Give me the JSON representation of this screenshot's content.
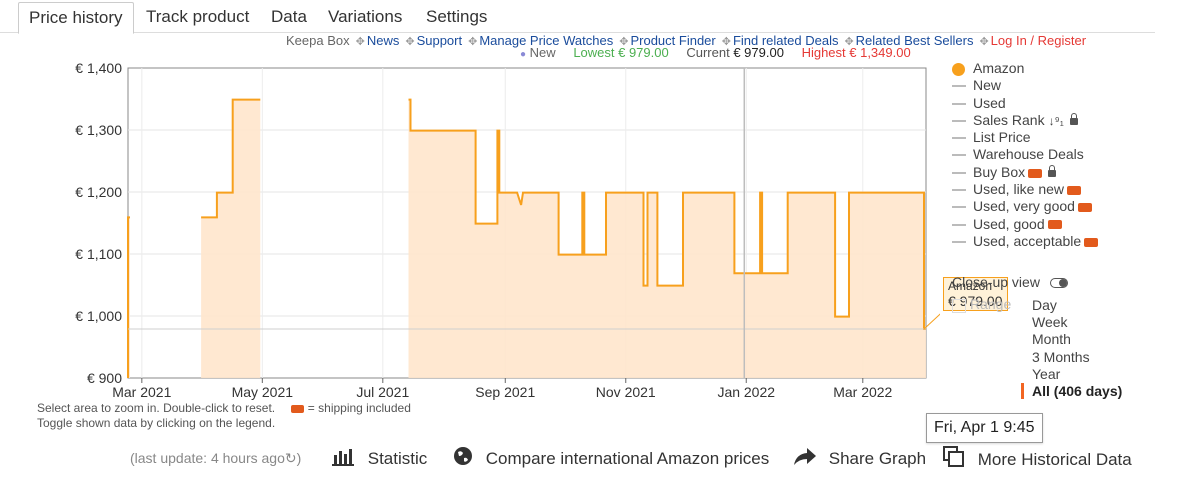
{
  "tabs": [
    "Price history",
    "Track product",
    "Data",
    "Variations",
    "Settings"
  ],
  "links": {
    "keepa_box": "Keepa Box",
    "news": "News",
    "support": "Support",
    "manage": "Manage Price Watches",
    "finder": "Product Finder",
    "deals": "Find related Deals",
    "best": "Related Best Sellers",
    "login": "Log In / Register"
  },
  "stats": {
    "new_label": "New",
    "lowest": "Lowest € 979.00",
    "current_label": "Current",
    "current_value": "€ 979.00",
    "highest": "Highest € 1,349.00"
  },
  "legend": [
    {
      "label": "Amazon",
      "marker": "dot",
      "extra": ""
    },
    {
      "label": "New",
      "marker": "line",
      "extra": ""
    },
    {
      "label": "Used",
      "marker": "line",
      "extra": ""
    },
    {
      "label": "Sales Rank",
      "marker": "line",
      "extra": "sort-lock"
    },
    {
      "label": "List Price",
      "marker": "line",
      "extra": ""
    },
    {
      "label": "Warehouse Deals",
      "marker": "line",
      "extra": ""
    },
    {
      "label": "Buy Box",
      "marker": "line",
      "extra": "truck-lock"
    },
    {
      "label": "Used, like new",
      "marker": "line",
      "extra": "truck"
    },
    {
      "label": "Used, very good",
      "marker": "line",
      "extra": "truck"
    },
    {
      "label": "Used, good",
      "marker": "line",
      "extra": "truck"
    },
    {
      "label": "Used, acceptable",
      "marker": "line",
      "extra": "truck"
    }
  ],
  "closeup_label": "Close-up view",
  "range_label": "Range",
  "range_options": [
    "Day",
    "Week",
    "Month",
    "3 Months",
    "Year",
    "All (406 days)"
  ],
  "tooltip": {
    "series": "Amazon",
    "price": "€ 979.00"
  },
  "hover_date": "Fri, Apr 1 9:45",
  "notes": {
    "line1": "Select area to zoom in. Double-click to reset.",
    "shipping": "= shipping included",
    "line2": "Toggle shown data by clicking on the legend."
  },
  "bottom": {
    "last_update": "(last update: 4 hours ago",
    "statistic": "Statistic",
    "compare": "Compare international Amazon prices",
    "share": "Share Graph",
    "more": "More Historical Data"
  },
  "colors": {
    "amazon": "#f7a01d",
    "fill": "#ffe6cc",
    "link": "#1a4c9c",
    "red": "#e53935",
    "green": "#4caf50"
  },
  "chart_data": {
    "type": "area",
    "title": "",
    "xlabel": "",
    "ylabel": "",
    "ylim": [
      900,
      1400
    ],
    "yticks": [
      900,
      1000,
      1100,
      1200,
      1300,
      1400
    ],
    "ytick_labels": [
      "€ 900",
      "€ 1,000",
      "€ 1,100",
      "€ 1,200",
      "€ 1,300",
      "€ 1,400"
    ],
    "xlim": [
      "2021-02-22",
      "2022-04-02"
    ],
    "xticks": [
      {
        "date": "2021-03-01",
        "label": "Mar 2021"
      },
      {
        "date": "2021-05-01",
        "label": "May 2021"
      },
      {
        "date": "2021-07-01",
        "label": "Jul 2021"
      },
      {
        "date": "2021-09-01",
        "label": "Sep 2021"
      },
      {
        "date": "2021-11-01",
        "label": "Nov 2021"
      },
      {
        "date": "2022-01-01",
        "label": "Jan 2022"
      },
      {
        "date": "2022-03-01",
        "label": "Mar 2022"
      }
    ],
    "series": [
      {
        "name": "Amazon",
        "step": true,
        "segments": [
          [
            [
              "2021-02-22",
              900
            ],
            [
              "2021-02-22",
              1159
            ],
            [
              "2021-02-23",
              1159
            ]
          ],
          [
            [
              "2021-03-31",
              1159
            ],
            [
              "2021-04-08",
              1159
            ],
            [
              "2021-04-08",
              1199
            ],
            [
              "2021-04-16",
              1199
            ],
            [
              "2021-04-16",
              1349
            ],
            [
              "2021-04-30",
              1349
            ]
          ],
          [
            [
              "2021-07-14",
              1349
            ],
            [
              "2021-07-15",
              1349
            ],
            [
              "2021-07-15",
              1299
            ],
            [
              "2021-08-17",
              1299
            ],
            [
              "2021-08-17",
              1149
            ],
            [
              "2021-08-28",
              1149
            ],
            [
              "2021-08-28",
              1299
            ],
            [
              "2021-08-29",
              1299
            ],
            [
              "2021-08-29",
              1199
            ],
            [
              "2021-09-07",
              1199
            ],
            [
              "2021-09-09",
              1179
            ],
            [
              "2021-09-10",
              1199
            ],
            [
              "2021-09-12",
              1199
            ],
            [
              "2021-09-12",
              1199
            ],
            [
              "2021-09-28",
              1199
            ],
            [
              "2021-09-28",
              1099
            ],
            [
              "2021-10-10",
              1099
            ],
            [
              "2021-10-10",
              1199
            ],
            [
              "2021-10-11",
              1199
            ],
            [
              "2021-10-11",
              1099
            ],
            [
              "2021-10-22",
              1099
            ],
            [
              "2021-10-22",
              1199
            ],
            [
              "2021-11-10",
              1199
            ],
            [
              "2021-11-10",
              1049
            ],
            [
              "2021-11-12",
              1049
            ],
            [
              "2021-11-12",
              1199
            ],
            [
              "2021-11-17",
              1199
            ],
            [
              "2021-11-17",
              1049
            ],
            [
              "2021-11-30",
              1049
            ],
            [
              "2021-11-30",
              1199
            ],
            [
              "2021-12-26",
              1199
            ],
            [
              "2021-12-26",
              1069
            ],
            [
              "2022-01-08",
              1069
            ],
            [
              "2022-01-08",
              1199
            ],
            [
              "2022-01-09",
              1199
            ],
            [
              "2022-01-09",
              1069
            ],
            [
              "2022-01-22",
              1069
            ],
            [
              "2022-01-22",
              1199
            ],
            [
              "2022-02-15",
              1199
            ],
            [
              "2022-02-15",
              999
            ],
            [
              "2022-02-22",
              999
            ],
            [
              "2022-02-22",
              1199
            ],
            [
              "2022-03-20",
              1199
            ],
            [
              "2022-04-01",
              1199
            ],
            [
              "2022-04-01",
              979
            ],
            [
              "2022-04-02",
              979
            ]
          ]
        ]
      }
    ],
    "reference_lines": {
      "current_price": 979,
      "hover_date": "2021-12-31"
    },
    "grid": true,
    "legend_position": "right"
  }
}
